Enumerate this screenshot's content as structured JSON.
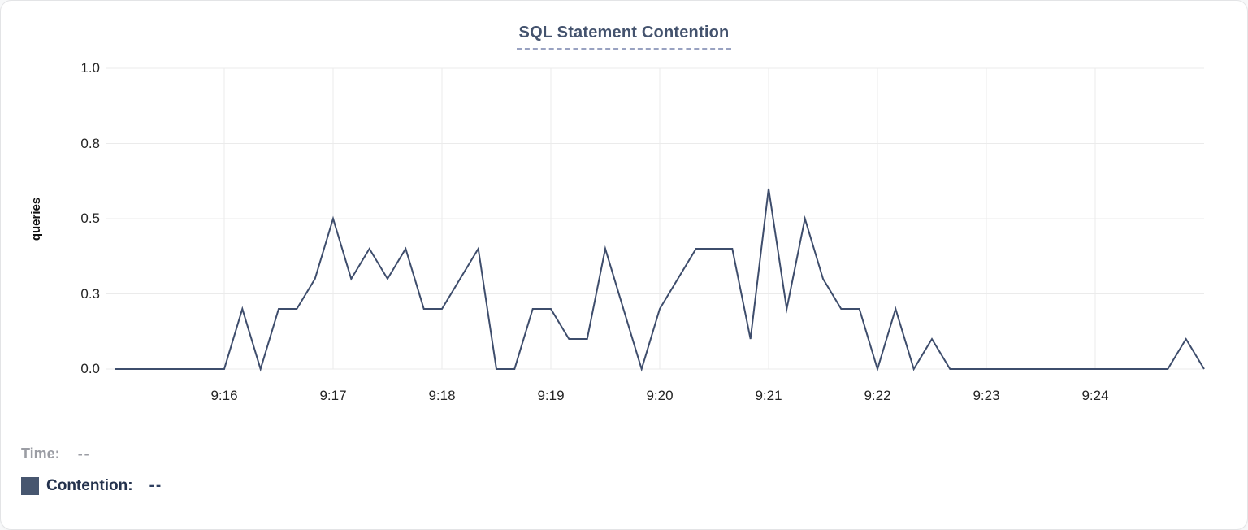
{
  "title": "SQL Statement Contention",
  "colors": {
    "line": "#3e4d6c",
    "swatch": "#47566f",
    "title": "#44536e",
    "grid": "#ebebeb"
  },
  "legend": {
    "time_label": "Time:",
    "time_value": "--",
    "series_label": "Contention:",
    "series_value": "--"
  },
  "chart_data": {
    "type": "line",
    "title": "SQL Statement Contention",
    "xlabel": "",
    "ylabel": "queries",
    "ylim": [
      0,
      1.0
    ],
    "grid": true,
    "legend_position": "bottom-left",
    "x_domain": [
      "9:15:00",
      "9:25:00"
    ],
    "x_ticks": [
      "9:16",
      "9:17",
      "9:18",
      "9:19",
      "9:20",
      "9:21",
      "9:22",
      "9:23",
      "9:24"
    ],
    "y_ticks": [
      {
        "label": "1.0",
        "value": 1.0
      },
      {
        "label": "0.8",
        "value": 0.75
      },
      {
        "label": "0.5",
        "value": 0.5
      },
      {
        "label": "0.3",
        "value": 0.25
      },
      {
        "label": "0.0",
        "value": 0.0
      }
    ],
    "series": [
      {
        "name": "Contention",
        "points": [
          {
            "t": "9:15:00",
            "v": 0.0
          },
          {
            "t": "9:15:10",
            "v": 0.0
          },
          {
            "t": "9:15:20",
            "v": 0.0
          },
          {
            "t": "9:15:30",
            "v": 0.0
          },
          {
            "t": "9:15:40",
            "v": 0.0
          },
          {
            "t": "9:15:50",
            "v": 0.0
          },
          {
            "t": "9:16:00",
            "v": 0.0
          },
          {
            "t": "9:16:10",
            "v": 0.2
          },
          {
            "t": "9:16:20",
            "v": 0.0
          },
          {
            "t": "9:16:30",
            "v": 0.2
          },
          {
            "t": "9:16:40",
            "v": 0.2
          },
          {
            "t": "9:16:50",
            "v": 0.3
          },
          {
            "t": "9:17:00",
            "v": 0.5
          },
          {
            "t": "9:17:10",
            "v": 0.3
          },
          {
            "t": "9:17:20",
            "v": 0.4
          },
          {
            "t": "9:17:30",
            "v": 0.3
          },
          {
            "t": "9:17:40",
            "v": 0.4
          },
          {
            "t": "9:17:50",
            "v": 0.2
          },
          {
            "t": "9:18:00",
            "v": 0.2
          },
          {
            "t": "9:18:10",
            "v": 0.3
          },
          {
            "t": "9:18:20",
            "v": 0.4
          },
          {
            "t": "9:18:30",
            "v": 0.0
          },
          {
            "t": "9:18:40",
            "v": 0.0
          },
          {
            "t": "9:18:50",
            "v": 0.2
          },
          {
            "t": "9:19:00",
            "v": 0.2
          },
          {
            "t": "9:19:10",
            "v": 0.1
          },
          {
            "t": "9:19:20",
            "v": 0.1
          },
          {
            "t": "9:19:30",
            "v": 0.4
          },
          {
            "t": "9:19:40",
            "v": 0.2
          },
          {
            "t": "9:19:50",
            "v": 0.0
          },
          {
            "t": "9:20:00",
            "v": 0.2
          },
          {
            "t": "9:20:10",
            "v": 0.3
          },
          {
            "t": "9:20:20",
            "v": 0.4
          },
          {
            "t": "9:20:30",
            "v": 0.4
          },
          {
            "t": "9:20:40",
            "v": 0.4
          },
          {
            "t": "9:20:50",
            "v": 0.1
          },
          {
            "t": "9:21:00",
            "v": 0.6
          },
          {
            "t": "9:21:10",
            "v": 0.2
          },
          {
            "t": "9:21:20",
            "v": 0.5
          },
          {
            "t": "9:21:30",
            "v": 0.3
          },
          {
            "t": "9:21:40",
            "v": 0.2
          },
          {
            "t": "9:21:50",
            "v": 0.2
          },
          {
            "t": "9:22:00",
            "v": 0.0
          },
          {
            "t": "9:22:10",
            "v": 0.2
          },
          {
            "t": "9:22:20",
            "v": 0.0
          },
          {
            "t": "9:22:30",
            "v": 0.1
          },
          {
            "t": "9:22:40",
            "v": 0.0
          },
          {
            "t": "9:22:50",
            "v": 0.0
          },
          {
            "t": "9:23:00",
            "v": 0.0
          },
          {
            "t": "9:23:10",
            "v": 0.0
          },
          {
            "t": "9:23:20",
            "v": 0.0
          },
          {
            "t": "9:23:30",
            "v": 0.0
          },
          {
            "t": "9:23:40",
            "v": 0.0
          },
          {
            "t": "9:23:50",
            "v": 0.0
          },
          {
            "t": "9:24:00",
            "v": 0.0
          },
          {
            "t": "9:24:10",
            "v": 0.0
          },
          {
            "t": "9:24:20",
            "v": 0.0
          },
          {
            "t": "9:24:30",
            "v": 0.0
          },
          {
            "t": "9:24:40",
            "v": 0.0
          },
          {
            "t": "9:24:50",
            "v": 0.1
          },
          {
            "t": "9:25:00",
            "v": 0.0
          }
        ]
      }
    ]
  }
}
